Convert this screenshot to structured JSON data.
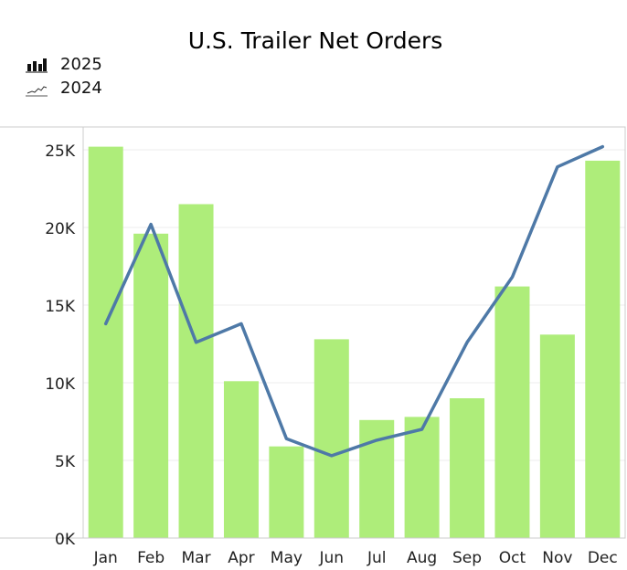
{
  "chart_data": {
    "type": "bar",
    "title": "U.S. Trailer Net Orders",
    "categories": [
      "Jan",
      "Feb",
      "Mar",
      "Apr",
      "May",
      "Jun",
      "Jul",
      "Aug",
      "Sep",
      "Oct",
      "Nov",
      "Dec"
    ],
    "series": [
      {
        "name": "2025",
        "type": "bar",
        "color": "#aeed7a",
        "values": [
          25200,
          19600,
          21500,
          10100,
          5900,
          12800,
          7600,
          7800,
          9000,
          16200,
          13100,
          24300
        ]
      },
      {
        "name": "2024",
        "type": "line",
        "color": "#4e79a7",
        "values": [
          13800,
          20200,
          12600,
          13800,
          6400,
          5300,
          6300,
          7000,
          12600,
          16800,
          23900,
          25200
        ]
      }
    ],
    "ylim": [
      0,
      26500
    ],
    "yticks": [
      0,
      5000,
      10000,
      15000,
      20000,
      25000
    ],
    "ytick_labels": [
      "0K",
      "5K",
      "10K",
      "15K",
      "20K",
      "25K"
    ],
    "grid": true,
    "legend_position": "top-left",
    "xlabel": "",
    "ylabel": ""
  }
}
